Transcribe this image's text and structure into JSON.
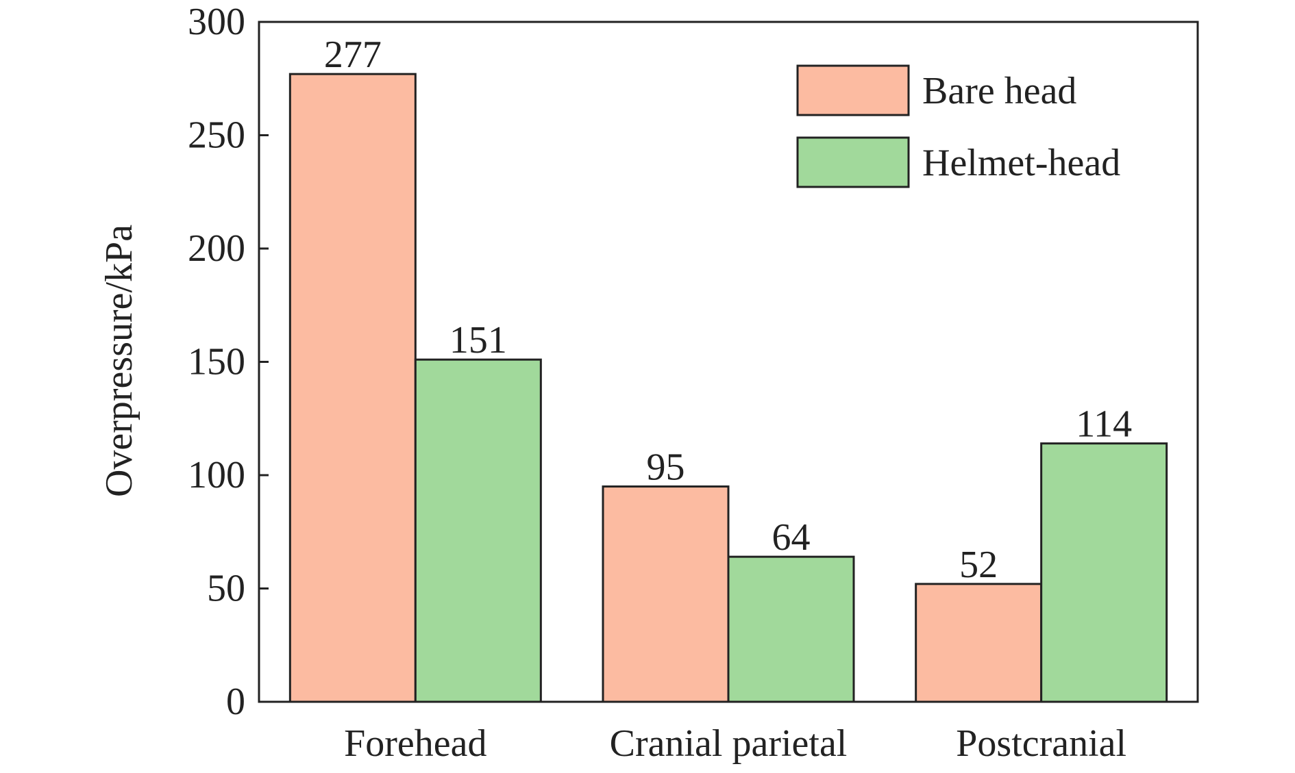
{
  "chart_data": {
    "type": "bar",
    "title": "",
    "xlabel": "",
    "ylabel": "Overpressure/kPa",
    "ylim": [
      0,
      300
    ],
    "yticks": [
      0,
      50,
      100,
      150,
      200,
      250,
      300
    ],
    "categories": [
      "Forehead",
      "Cranial parietal",
      "Postcranial"
    ],
    "series": [
      {
        "name": "Bare head",
        "color": "#FCBBA1",
        "values": [
          277,
          95,
          52
        ]
      },
      {
        "name": "Helmet-head",
        "color": "#A1D99B",
        "values": [
          151,
          64,
          114
        ]
      }
    ],
    "data_labels": true,
    "grid": false,
    "legend": {
      "position": "top-right"
    }
  }
}
